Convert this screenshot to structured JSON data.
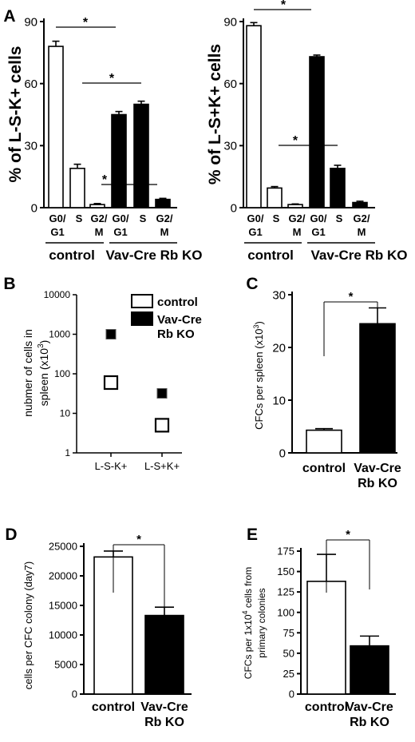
{
  "chart_data": [
    {
      "panel": "A",
      "type": "bar",
      "ylabel": "% of L-S-K+ cells",
      "ylim": [
        0,
        90
      ],
      "yticks": [
        0,
        30,
        60,
        90
      ],
      "categories": [
        "G0/ G1",
        "S",
        "G2/ M",
        "G0/ G1",
        "S",
        "G2/ M"
      ],
      "values": [
        78,
        19,
        1.5,
        45,
        50,
        4
      ],
      "errors": [
        2.5,
        2,
        0.5,
        1.5,
        1.5,
        0.5
      ],
      "fills": [
        "#ffffff",
        "#ffffff",
        "#ffffff",
        "#000000",
        "#000000",
        "#000000"
      ],
      "groups": [
        "control",
        "Vav-Cre Rb KO"
      ],
      "significance": [
        "*",
        "*",
        "*"
      ]
    },
    {
      "panel": "",
      "type": "bar",
      "ylabel": "% of L-S+K+ cells",
      "ylim": [
        0,
        90
      ],
      "yticks": [
        0,
        30,
        60,
        90
      ],
      "categories": [
        "G0/ G1",
        "S",
        "G2/ M",
        "G0/ G1",
        "S",
        "G2/ M"
      ],
      "values": [
        88,
        9.5,
        1.5,
        73,
        19,
        2.5
      ],
      "errors": [
        1.5,
        0.7,
        0.3,
        0.8,
        1.5,
        0.6
      ],
      "fills": [
        "#ffffff",
        "#ffffff",
        "#ffffff",
        "#000000",
        "#000000",
        "#000000"
      ],
      "groups": [
        "control",
        "Vav-Cre Rb KO"
      ],
      "significance": [
        "*",
        "*"
      ]
    },
    {
      "panel": "B",
      "type": "scatter",
      "ylabel": "nubmer of cells in spleen (x10³)",
      "yscale": "log",
      "ylim": [
        1,
        10000
      ],
      "yticks": [
        1,
        10,
        100,
        1000,
        10000
      ],
      "categories": [
        "L-S-K+",
        "L-S+K+"
      ],
      "series": [
        {
          "name": "control",
          "values": [
            60,
            5
          ],
          "color": "#ffffff"
        },
        {
          "name": "Vav-Cre Rb KO",
          "values": [
            1000,
            32
          ],
          "color": "#000000"
        }
      ],
      "legend": "top-right"
    },
    {
      "panel": "C",
      "type": "bar",
      "ylabel": "CFCs per spleen (x10³)",
      "ylim": [
        0,
        30
      ],
      "yticks": [
        0,
        10,
        20,
        30
      ],
      "categories": [
        "control",
        "Vav-Cre Rb KO"
      ],
      "values": [
        4.3,
        24.5
      ],
      "errors": [
        0.3,
        3.0
      ],
      "fills": [
        "#ffffff",
        "#000000"
      ],
      "significance": [
        "*"
      ]
    },
    {
      "panel": "D",
      "type": "bar",
      "ylabel": "cells per CFC colony (day7)",
      "ylim": [
        0,
        25000
      ],
      "yticks": [
        0,
        5000,
        10000,
        15000,
        20000,
        25000
      ],
      "categories": [
        "control",
        "Vav-Cre Rb KO"
      ],
      "values": [
        23200,
        13300
      ],
      "errors": [
        1000,
        1400
      ],
      "fills": [
        "#ffffff",
        "#000000"
      ],
      "significance": [
        "*"
      ]
    },
    {
      "panel": "E",
      "type": "bar",
      "ylabel": "CFCs per 1x10⁴ cells from primary colonies",
      "ylim": [
        0,
        175
      ],
      "yticks": [
        0,
        25,
        50,
        75,
        100,
        125,
        150,
        175
      ],
      "categories": [
        "control",
        "Vav-Cre Rb KO"
      ],
      "values": [
        138,
        59
      ],
      "errors": [
        33,
        12
      ],
      "fills": [
        "#ffffff",
        "#000000"
      ],
      "significance": [
        "*"
      ]
    }
  ]
}
